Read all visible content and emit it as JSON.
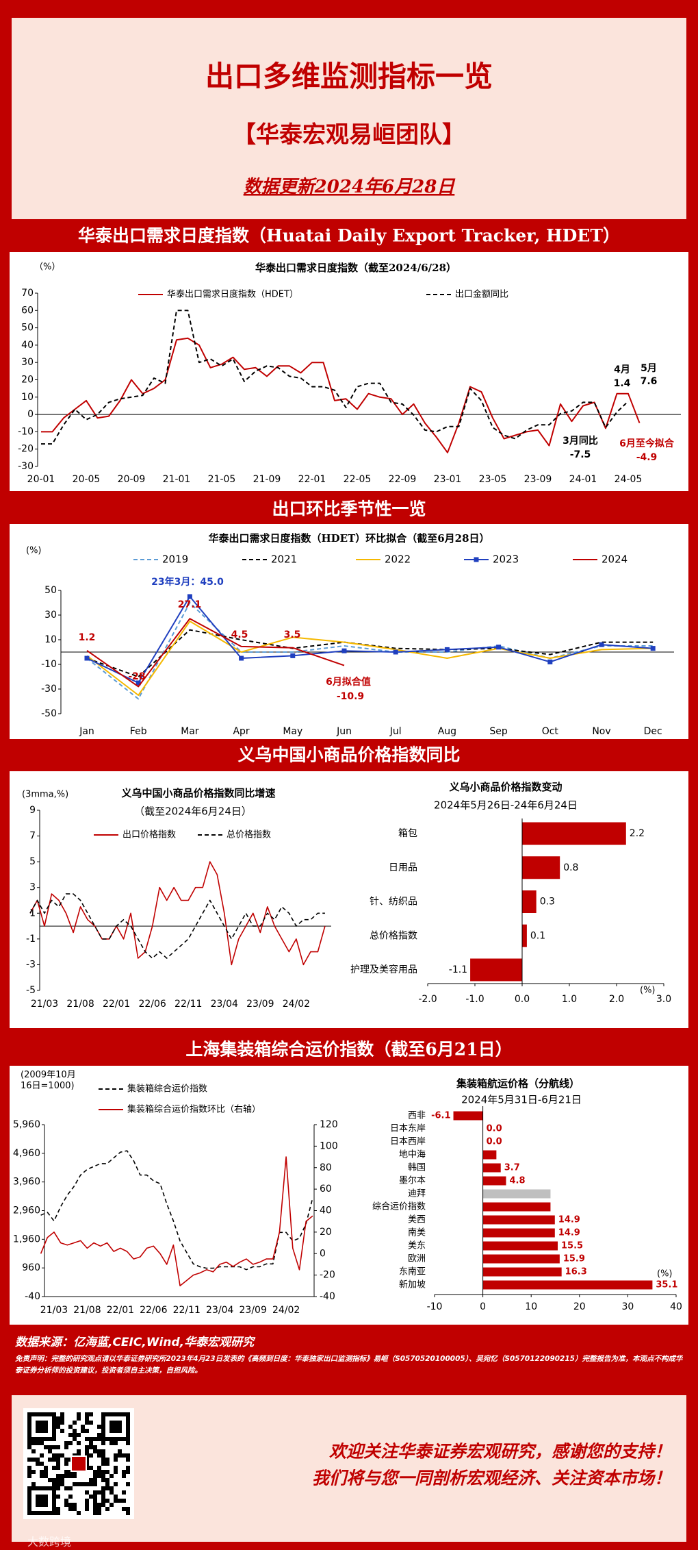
{
  "header": {
    "title": "出口多维监测指标一览",
    "team": "【华泰宏观易峘团队】",
    "update": "数据更新2024年6月28日"
  },
  "sections": [
    "华泰出口需求日度指数（Huatai Daily Export Tracker, HDET）",
    "出口环比季节性一览",
    "义乌中国小商品价格指数同比",
    "上海集装箱综合运价指数（截至6月21日）"
  ],
  "chart_data": [
    {
      "type": "line",
      "title": "华泰出口需求日度指数（截至2024/6/28）",
      "ylabel": "（%）",
      "categories": [
        "20-01",
        null,
        null,
        null,
        "20-05",
        null,
        null,
        null,
        "20-09",
        null,
        null,
        null,
        "21-01",
        null,
        null,
        null,
        "21-05",
        null,
        null,
        null,
        "21-09",
        null,
        null,
        null,
        "22-01",
        null,
        null,
        null,
        "22-05",
        null,
        null,
        null,
        "22-09",
        null,
        null,
        null,
        "23-01",
        null,
        null,
        null,
        "23-05",
        null,
        null,
        null,
        "23-09",
        null,
        null,
        null,
        "24-01",
        null,
        null,
        null,
        "24-05",
        null
      ],
      "series": [
        {
          "name": "华泰出口需求日度指数（HDET）",
          "color": "#c00000",
          "dash": false,
          "values": [
            -10,
            -10,
            -2,
            3,
            8,
            -2,
            -1,
            8,
            20,
            12,
            15,
            20,
            43,
            44,
            40,
            27,
            29,
            33,
            26,
            27,
            22,
            28,
            28,
            24,
            30,
            30,
            8,
            9,
            3,
            12,
            10,
            9,
            0,
            6,
            -5,
            -13,
            -22,
            -5,
            16,
            13,
            -2,
            -14,
            -12,
            -10,
            -9,
            -18,
            6,
            -4,
            5,
            7,
            -8,
            12,
            12,
            -4.9
          ]
        },
        {
          "name": "出口金额同比",
          "color": "#000000",
          "dash": true,
          "values": [
            -17,
            -17,
            -6,
            3,
            -3,
            0,
            7,
            9,
            10,
            11,
            21,
            18,
            60,
            60,
            30,
            32,
            28,
            32,
            19,
            25,
            28,
            27,
            22,
            21,
            16,
            16,
            14,
            4,
            16,
            18,
            18,
            7,
            6,
            -0.3,
            -9,
            -10,
            -7,
            -7,
            15,
            8,
            -7.5,
            -12,
            -14,
            -9,
            -6,
            -6,
            0.5,
            2,
            7,
            7,
            -7.5,
            1.4,
            7.6,
            null
          ]
        }
      ],
      "ylim": [
        -30,
        70
      ],
      "yticks": [
        -30,
        -20,
        -10,
        0,
        10,
        20,
        30,
        40,
        50,
        60,
        70
      ],
      "annotations": [
        "4月",
        "5月",
        "3月同比",
        "6月至今拟合"
      ]
    },
    {
      "type": "line",
      "title": "华泰出口需求日度指数（HDET）环比拟合（截至6月28日）",
      "ylabel": "(%)",
      "categories": [
        "Jan",
        "Feb",
        "Mar",
        "Apr",
        "May",
        "Jun",
        "Jul",
        "Aug",
        "Sep",
        "Oct",
        "Nov",
        "Dec"
      ],
      "series": [
        {
          "name": "2019",
          "color": "#5b9bd5",
          "dash": true,
          "values": [
            -5,
            -38,
            40,
            0,
            0,
            5,
            0,
            0,
            5,
            -5,
            5,
            5
          ]
        },
        {
          "name": "2021",
          "color": "#000000",
          "dash": true,
          "values": [
            -5,
            -20,
            18,
            10,
            3,
            8,
            3,
            2,
            3,
            -2,
            8,
            8
          ]
        },
        {
          "name": "2022",
          "color": "#f5b800",
          "dash": false,
          "values": [
            -3,
            -35,
            25,
            0,
            12,
            8,
            2,
            -5,
            3,
            -5,
            2,
            3
          ]
        },
        {
          "name": "2023",
          "color": "#1f3fbf",
          "dash": false,
          "markers": true,
          "values": [
            -5,
            -25,
            45,
            -5,
            -3,
            1,
            0,
            2,
            4,
            -8,
            6,
            3
          ]
        },
        {
          "name": "2024",
          "color": "#c00000",
          "dash": false,
          "values": [
            1.2,
            -28,
            27.1,
            4.5,
            3.5,
            -10.9,
            null,
            null,
            null,
            null,
            null,
            null
          ]
        }
      ],
      "ylim": [
        -50,
        50
      ],
      "yticks": [
        -50,
        -30,
        -10,
        10,
        30,
        50
      ],
      "annotations": [
        "23年3月：45.0",
        "6月拟合值"
      ]
    },
    {
      "type": "line",
      "title": "义乌中国小商品价格指数同比增速",
      "subtitle": "（截至2024年6月24日）",
      "ylabel": "(3mma,%)",
      "categories": [
        null,
        null,
        "21/03",
        null,
        null,
        null,
        null,
        "21/08",
        null,
        null,
        null,
        null,
        "22/01",
        null,
        null,
        null,
        null,
        "22/06",
        null,
        null,
        null,
        null,
        "22/11",
        null,
        null,
        null,
        null,
        "23/04",
        null,
        null,
        null,
        null,
        "23/09",
        null,
        null,
        null,
        null,
        "24/02",
        null,
        null,
        null,
        null
      ],
      "series": [
        {
          "name": "出口价格指数",
          "color": "#c00000",
          "dash": false,
          "values": [
            1,
            2,
            0,
            2.5,
            2,
            1,
            -0.5,
            1.5,
            0.5,
            0,
            -1,
            -1,
            0,
            -1,
            1,
            -2.5,
            -2,
            0,
            3,
            2,
            3,
            2,
            2,
            3,
            3,
            5,
            4,
            1,
            -3,
            -1,
            0,
            1,
            -0.5,
            1.5,
            0,
            -1,
            -2,
            -1,
            -3,
            -2,
            -2,
            0
          ]
        },
        {
          "name": "总价格指数",
          "color": "#000000",
          "dash": true,
          "values": [
            1,
            2,
            1,
            2,
            1.5,
            2.5,
            2.5,
            2,
            1,
            0,
            -1,
            -1,
            0,
            0.5,
            0,
            -1,
            -2,
            -2.5,
            -2,
            -2.5,
            -2,
            -1.5,
            -1,
            0,
            1,
            2,
            1,
            0,
            -1,
            0,
            1,
            0,
            0,
            1,
            0.5,
            1.5,
            1,
            0,
            0.5,
            0.5,
            1,
            1
          ]
        }
      ],
      "ylim": [
        -5,
        9
      ],
      "yticks": [
        -5,
        -3,
        -1,
        1,
        3,
        5,
        7,
        9
      ]
    },
    {
      "type": "hbar",
      "title": "义乌小商品价格指数变动",
      "subtitle": "2024年5月26日-24年6月24日",
      "xlabel": "(%)",
      "categories": [
        "箱包",
        "日用品",
        "针、纺织品",
        "总价格指数",
        "护理及美容用品"
      ],
      "values": [
        2.2,
        0.8,
        0.3,
        0.1,
        -1.1
      ],
      "color": "#c00000",
      "xlim": [
        -2,
        3
      ],
      "xticks": [
        {
          "value": -2,
          "label": "-2.0"
        },
        {
          "value": -1,
          "label": "-1.0"
        },
        {
          "value": 0,
          "label": "0.0"
        },
        {
          "value": 1,
          "label": "1.0"
        },
        {
          "value": 2,
          "label": "2.0"
        },
        {
          "value": 3,
          "label": "3.0"
        }
      ]
    },
    {
      "type": "line",
      "ylabel": "(2009年10月16日=1000)",
      "categories": [
        null,
        null,
        "21/03",
        null,
        null,
        null,
        null,
        "21/08",
        null,
        null,
        null,
        null,
        "22/01",
        null,
        null,
        null,
        null,
        "22/06",
        null,
        null,
        null,
        null,
        "22/11",
        null,
        null,
        null,
        null,
        "23/04",
        null,
        null,
        null,
        null,
        "23/09",
        null,
        null,
        null,
        null,
        "24/02",
        null,
        null,
        null,
        null
      ],
      "series": [
        {
          "name": "集装箱综合运价指数",
          "color": "#000000",
          "dash": true,
          "values": [
            2800,
            2900,
            2600,
            3100,
            3500,
            3800,
            4200,
            4400,
            4500,
            4600,
            4600,
            4800,
            5000,
            5050,
            4700,
            4200,
            4200,
            4000,
            3900,
            3200,
            2600,
            1900,
            1500,
            1100,
            1000,
            950,
            950,
            1000,
            1000,
            1000,
            1000,
            900,
            1000,
            1000,
            1100,
            1100,
            2200,
            2200,
            1900,
            2000,
            2500,
            3400
          ]
        },
        {
          "name": "集装箱综合运价指数环比（右轴）",
          "color": "#c00000",
          "dash": false,
          "axis": "y2",
          "values": [
            0,
            15,
            20,
            10,
            8,
            10,
            12,
            5,
            10,
            7,
            10,
            2,
            5,
            2,
            -5,
            -3,
            5,
            7,
            0,
            -10,
            8,
            -30,
            -25,
            -20,
            -18,
            -15,
            -17,
            -10,
            -8,
            -12,
            -8,
            -5,
            -10,
            -8,
            -5,
            -5,
            20,
            90,
            5,
            -15,
            30,
            35
          ]
        }
      ],
      "ylim": [
        -40,
        5960
      ],
      "yticks": [
        -40,
        960,
        {
          "value": 1960,
          "label": "1,960"
        },
        {
          "value": 2960,
          "label": "2,960"
        },
        {
          "value": 3960,
          "label": "3,960"
        },
        {
          "value": 4960,
          "label": "4,960"
        },
        {
          "value": 5960,
          "label": "5,960"
        }
      ],
      "y2lim": [
        -40,
        120
      ],
      "y2ticks": [
        -40,
        -20,
        0,
        20,
        40,
        60,
        80,
        100,
        120
      ]
    },
    {
      "type": "hbar",
      "title": "集装箱航运价格（分航线）",
      "subtitle": "2024年5月31日-6月21日",
      "xlabel": "(%)",
      "categories": [
        "西非",
        "日本东岸",
        "日本西岸",
        "地中海",
        "韩国",
        "墨尔本",
        "迪拜",
        "综合运价指数",
        "美西",
        "南美",
        "美东",
        "欧洲",
        "东南亚",
        "新加坡"
      ],
      "values": [
        -6.1,
        0,
        0,
        2.8,
        3.7,
        4.8,
        14,
        14,
        14.9,
        14.9,
        15.5,
        15.9,
        16.3,
        35.1
      ],
      "value_labels": [
        "-6.1",
        "0.0",
        "0.0",
        null,
        "3.7",
        "4.8",
        null,
        null,
        "14.9",
        "14.9",
        "15.5",
        "15.9",
        "16.3",
        "35.1"
      ],
      "colors": [
        "#c00000",
        "#c00000",
        "#c00000",
        "#c00000",
        "#c00000",
        "#c00000",
        "#bfbfbf",
        "#c00000",
        "#c00000",
        "#c00000",
        "#c00000",
        "#c00000",
        "#c00000",
        "#c00000"
      ],
      "xlim": [
        -10,
        40
      ],
      "xticks": [
        -10,
        0,
        10,
        20,
        30,
        40
      ]
    }
  ],
  "footer": {
    "source": "数据来源：亿海蓝,CEIC,Wind,华泰宏观研究",
    "disclaimer": "免责声明：完整的研究观点请以华泰证券研究所2023年4月23日发表的《高频到日度：华泰独家出口监测指标》易峘（S0570520100005）、吴宛忆（S0570122090215）完整报告为准，本观点不构成华泰证券分析师的投资建议，投资者须自主决策，自担风险。",
    "closing": [
      "欢迎关注华泰证券宏观研究，感谢您的支持！",
      "我们将与您一同剖析宏观经济、关注资本市场！"
    ],
    "watermark": "大数跨境"
  }
}
